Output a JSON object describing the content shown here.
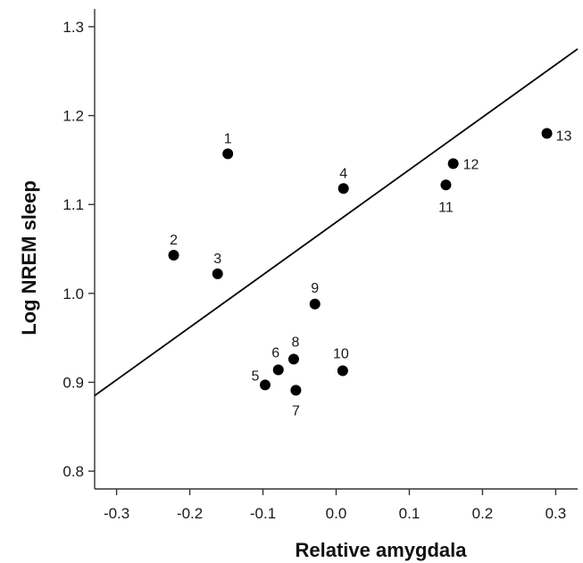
{
  "chart_data": {
    "type": "scatter",
    "xlabel": "Relative amygdala",
    "ylabel": "Log NREM sleep",
    "xlim": [
      -0.33,
      0.33
    ],
    "ylim": [
      0.78,
      1.32
    ],
    "xticks": [
      -0.3,
      -0.2,
      -0.1,
      0.0,
      0.1,
      0.2,
      0.3
    ],
    "xtick_labels": [
      "-0.3",
      "-0.2",
      "-0.1",
      "0.0",
      "0.1",
      "0.2",
      "0.3"
    ],
    "yticks": [
      0.8,
      0.9,
      1.0,
      1.1,
      1.2,
      1.3
    ],
    "ytick_labels": [
      "0.8",
      "0.9",
      "1.0",
      "1.1",
      "1.2",
      "1.3"
    ],
    "grid": false,
    "points": [
      {
        "label": "1",
        "x": -0.148,
        "y": 1.157
      },
      {
        "label": "2",
        "x": -0.222,
        "y": 1.043
      },
      {
        "label": "3",
        "x": -0.162,
        "y": 1.022
      },
      {
        "label": "4",
        "x": 0.01,
        "y": 1.118
      },
      {
        "label": "5",
        "x": -0.097,
        "y": 0.897
      },
      {
        "label": "6",
        "x": -0.079,
        "y": 0.914
      },
      {
        "label": "7",
        "x": -0.055,
        "y": 0.891
      },
      {
        "label": "8",
        "x": -0.058,
        "y": 0.926
      },
      {
        "label": "9",
        "x": -0.029,
        "y": 0.988
      },
      {
        "label": "10",
        "x": 0.009,
        "y": 0.913
      },
      {
        "label": "11",
        "x": 0.15,
        "y": 1.122
      },
      {
        "label": "12",
        "x": 0.16,
        "y": 1.146
      },
      {
        "label": "13",
        "x": 0.288,
        "y": 1.18
      }
    ],
    "regression_line": {
      "x": [
        -0.33,
        0.33
      ],
      "y": [
        0.885,
        1.275
      ]
    },
    "colors": {
      "marker": "#000000",
      "line": "#000000",
      "axis": "#333333"
    }
  }
}
